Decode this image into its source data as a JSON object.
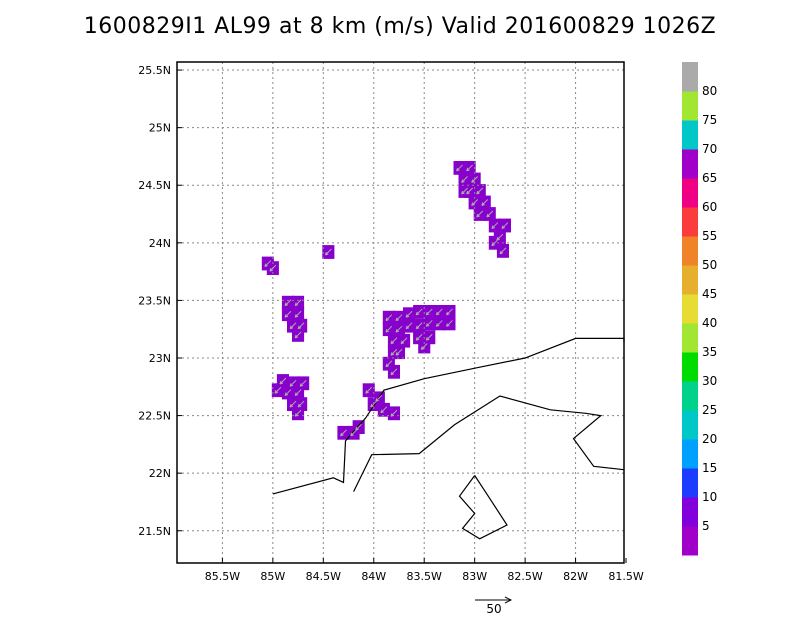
{
  "title": "1600829I1 AL99 at 8 km (m/s) Valid 201600829 1026Z",
  "map": {
    "lon_range": [
      -85.95,
      -81.52
    ],
    "lat_range": [
      21.22,
      25.57
    ],
    "lon_ticks": [
      {
        "v": -85.5,
        "label": "85.5W"
      },
      {
        "v": -85,
        "label": "85W"
      },
      {
        "v": -84.5,
        "label": "84.5W"
      },
      {
        "v": -84,
        "label": "84W"
      },
      {
        "v": -83.5,
        "label": "83.5W"
      },
      {
        "v": -83,
        "label": "83W"
      },
      {
        "v": -82.5,
        "label": "82.5W"
      },
      {
        "v": -82,
        "label": "82W"
      },
      {
        "v": -81.5,
        "label": "81.5W"
      }
    ],
    "lat_ticks": [
      {
        "v": 25.5,
        "label": "25.5N"
      },
      {
        "v": 25,
        "label": "25N"
      },
      {
        "v": 24.5,
        "label": "24.5N"
      },
      {
        "v": 24,
        "label": "24N"
      },
      {
        "v": 23.5,
        "label": "23.5N"
      },
      {
        "v": 23,
        "label": "23N"
      },
      {
        "v": 22.5,
        "label": "22.5N"
      },
      {
        "v": 22,
        "label": "22N"
      },
      {
        "v": 21.5,
        "label": "21.5N"
      }
    ],
    "grid": true,
    "coastlines": [
      [
        [
          -85.0,
          21.82
        ],
        [
          -84.4,
          21.96
        ],
        [
          -84.3,
          21.92
        ],
        [
          -84.28,
          22.28
        ],
        [
          -84.08,
          22.48
        ],
        [
          -83.9,
          22.72
        ],
        [
          -83.5,
          22.82
        ],
        [
          -82.95,
          22.92
        ],
        [
          -82.5,
          23.0
        ],
        [
          -82.0,
          23.17
        ],
        [
          -81.52,
          23.17
        ],
        [
          -81.52,
          23.14
        ]
      ],
      [
        [
          -84.2,
          21.84
        ],
        [
          -84.02,
          22.16
        ],
        [
          -83.55,
          22.17
        ],
        [
          -83.2,
          22.42
        ],
        [
          -82.75,
          22.67
        ],
        [
          -82.25,
          22.55
        ],
        [
          -81.9,
          22.52
        ],
        [
          -81.75,
          22.5
        ],
        [
          -82.02,
          22.3
        ],
        [
          -81.82,
          22.06
        ],
        [
          -81.52,
          22.03
        ]
      ],
      [
        [
          -83.0,
          21.98
        ],
        [
          -82.88,
          21.82
        ],
        [
          -82.68,
          21.55
        ],
        [
          -82.95,
          21.43
        ],
        [
          -83.12,
          21.52
        ],
        [
          -83.0,
          21.65
        ],
        [
          -83.15,
          21.8
        ],
        [
          -83.0,
          21.98
        ]
      ]
    ],
    "wind_cell_color": "#8800cc",
    "wind_cells": [
      [
        -83.15,
        24.65
      ],
      [
        -83.05,
        24.65
      ],
      [
        -83.1,
        24.55
      ],
      [
        -83.0,
        24.55
      ],
      [
        -82.95,
        24.45
      ],
      [
        -83.05,
        24.45
      ],
      [
        -83.1,
        24.45
      ],
      [
        -83.0,
        24.35
      ],
      [
        -82.9,
        24.35
      ],
      [
        -82.95,
        24.25
      ],
      [
        -82.85,
        24.25
      ],
      [
        -82.8,
        24.15
      ],
      [
        -82.7,
        24.15
      ],
      [
        -82.75,
        24.05
      ],
      [
        -82.8,
        24.0
      ],
      [
        -82.72,
        23.93
      ],
      [
        -85.05,
        23.82
      ],
      [
        -85.0,
        23.78
      ],
      [
        -84.45,
        23.92
      ],
      [
        -84.85,
        23.48
      ],
      [
        -84.75,
        23.48
      ],
      [
        -84.85,
        23.38
      ],
      [
        -84.75,
        23.38
      ],
      [
        -84.8,
        23.28
      ],
      [
        -84.72,
        23.28
      ],
      [
        -84.75,
        23.2
      ],
      [
        -83.85,
        23.35
      ],
      [
        -83.75,
        23.35
      ],
      [
        -83.65,
        23.38
      ],
      [
        -83.55,
        23.4
      ],
      [
        -83.45,
        23.4
      ],
      [
        -83.35,
        23.4
      ],
      [
        -83.25,
        23.4
      ],
      [
        -83.85,
        23.25
      ],
      [
        -83.75,
        23.25
      ],
      [
        -83.65,
        23.28
      ],
      [
        -83.55,
        23.28
      ],
      [
        -83.45,
        23.3
      ],
      [
        -83.35,
        23.3
      ],
      [
        -83.25,
        23.3
      ],
      [
        -83.8,
        23.15
      ],
      [
        -83.7,
        23.15
      ],
      [
        -83.55,
        23.18
      ],
      [
        -83.45,
        23.18
      ],
      [
        -83.8,
        23.05
      ],
      [
        -83.75,
        23.05
      ],
      [
        -83.5,
        23.1
      ],
      [
        -83.85,
        22.95
      ],
      [
        -83.8,
        22.88
      ],
      [
        -84.9,
        22.8
      ],
      [
        -84.8,
        22.78
      ],
      [
        -84.7,
        22.78
      ],
      [
        -84.95,
        22.72
      ],
      [
        -84.85,
        22.7
      ],
      [
        -84.75,
        22.7
      ],
      [
        -84.8,
        22.6
      ],
      [
        -84.72,
        22.6
      ],
      [
        -84.75,
        22.52
      ],
      [
        -84.05,
        22.72
      ],
      [
        -83.95,
        22.65
      ],
      [
        -84.0,
        22.6
      ],
      [
        -83.9,
        22.55
      ],
      [
        -83.8,
        22.52
      ],
      [
        -84.3,
        22.35
      ],
      [
        -84.2,
        22.35
      ],
      [
        -84.15,
        22.4
      ]
    ],
    "wind_arrow_color": "#aaaaaa",
    "vector_reference": {
      "label": "50",
      "value": 50
    }
  },
  "colorbar": {
    "colors": [
      "#a000c8",
      "#8200dc",
      "#1e3cff",
      "#00a0ff",
      "#00c8c8",
      "#00d28c",
      "#00dc00",
      "#a0e632",
      "#e6dc32",
      "#e6af2d",
      "#f08228",
      "#fa3c3c",
      "#f00082",
      "#a000c8",
      "#00c8c8",
      "#a0e632",
      "#aaaaaa"
    ],
    "labels": [
      "5",
      "10",
      "15",
      "20",
      "25",
      "30",
      "35",
      "40",
      "45",
      "50",
      "55",
      "60",
      "65",
      "70",
      "75",
      "80"
    ]
  }
}
